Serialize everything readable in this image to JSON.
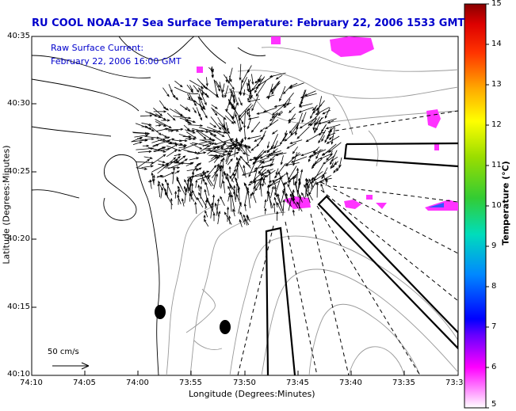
{
  "title": "RU COOL  NOAA-17  Sea Surface Temperature:  February 22, 2006 1533 GMT",
  "overlay": {
    "line1": "Raw Surface Current:",
    "line2": "February 22, 2006 16:00 GMT"
  },
  "axes": {
    "ylabel": "Latitude (Degrees:Minutes)",
    "xlabel": "Longitude (Degrees:Minutes)",
    "yticks": [
      "40:35",
      "40:30",
      "40:25",
      "40:20",
      "40:15",
      "40:10"
    ],
    "xticks": [
      "74:10",
      "74:05",
      "74:00",
      "73:55",
      "73:50",
      "73:45",
      "73:40",
      "73:35",
      "73:3"
    ]
  },
  "scale_label": "50 cm/s",
  "colorbar": {
    "label": "Temperature (°C)",
    "ticks": [
      "15",
      "14",
      "13",
      "12",
      "11",
      "10",
      "9",
      "8",
      "7",
      "6",
      "5"
    ],
    "min": 5,
    "max": 15
  },
  "colors": {
    "title": "#0000cc",
    "land": "#ffffff",
    "sst_patch": "#ff33ff",
    "vectors": "#000000"
  }
}
